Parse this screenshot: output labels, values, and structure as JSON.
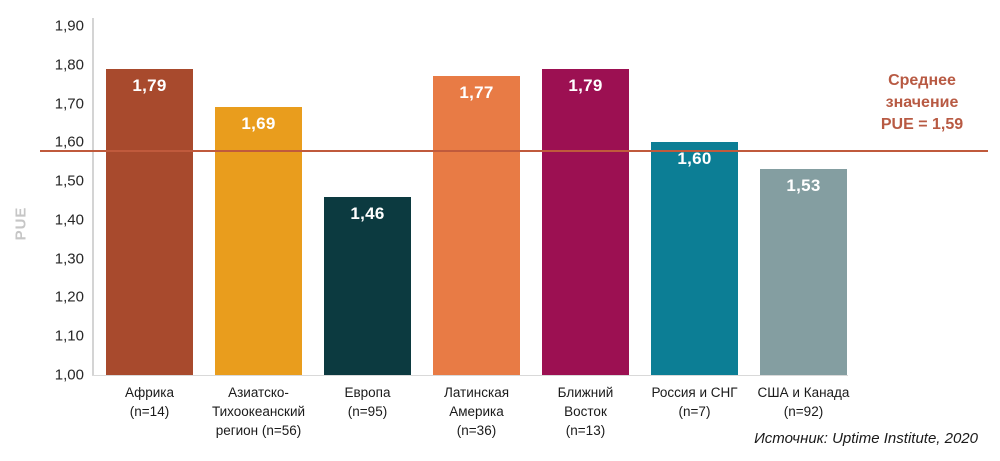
{
  "chart_data": {
    "type": "bar",
    "title": "",
    "xlabel": "",
    "ylabel": "PUE",
    "ylim": [
      1.0,
      1.9
    ],
    "ytick_step": 0.1,
    "ytick_labels": [
      "1,90",
      "1,80",
      "1,70",
      "1,60",
      "1,50",
      "1,40",
      "1,30",
      "1,20",
      "1,10",
      "1,00"
    ],
    "grid": false,
    "legend": false,
    "categories": [
      "Африка\n(n=14)",
      "Азиатско-\nТихоокеанский\nрегион (n=56)",
      "Европа\n(n=95)",
      "Латинская\nАмерика\n(n=36)",
      "Ближний\nВосток\n(n=13)",
      "Россия и СНГ\n(n=7)",
      "США и Канада\n(n=92)"
    ],
    "values": [
      1.79,
      1.69,
      1.46,
      1.77,
      1.79,
      1.6,
      1.53
    ],
    "value_labels": [
      "1,79",
      "1,69",
      "1,46",
      "1,77",
      "1,79",
      "1,60",
      "1,53"
    ],
    "bar_colors": [
      "#a84a2d",
      "#e99d1d",
      "#0c3a40",
      "#e87b45",
      "#9c1052",
      "#0c7e95",
      "#849ea1"
    ],
    "average_line": {
      "value": 1.59,
      "color": "#c05a3c",
      "label_color": "#b85a43",
      "label_lines": [
        "Среднее",
        "значение",
        "PUE = 1,59"
      ]
    },
    "source": "Источник: Uptime Institute, 2020",
    "colors": {
      "axis": "#d4d4d4",
      "tick_text": "#262626",
      "ylabel_text": "#c6c6c6",
      "value_text": "#ffffff"
    }
  }
}
